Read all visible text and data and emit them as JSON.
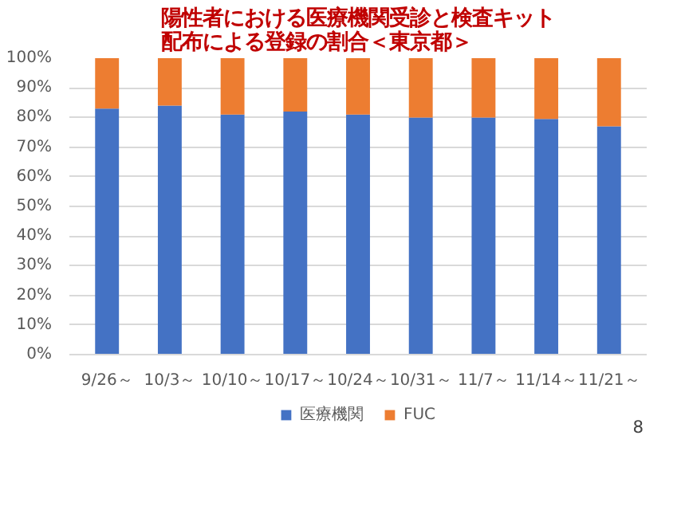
{
  "chart_data": {
    "type": "bar",
    "stacked": true,
    "title": "陽性者における医療機関受診と検査キット配布による登録の割合＜東京都＞",
    "categories": [
      "9/26～",
      "10/3～",
      "10/10～",
      "10/17～",
      "10/24～",
      "10/31～",
      "11/7～",
      "11/14～",
      "11/21～"
    ],
    "series": [
      {
        "name": "医療機関",
        "color": "#4472c4",
        "values": [
          83,
          84,
          81,
          82,
          81,
          80,
          80,
          79.5,
          77
        ]
      },
      {
        "name": "FUC",
        "color": "#ed7d31",
        "values": [
          17,
          16,
          19,
          18,
          19,
          20,
          20,
          20.5,
          23
        ]
      }
    ],
    "ylim": [
      0,
      100
    ],
    "yticks": [
      {
        "value": 0,
        "label": "0%"
      },
      {
        "value": 10,
        "label": "10%"
      },
      {
        "value": 20,
        "label": "20%"
      },
      {
        "value": 30,
        "label": "30%"
      },
      {
        "value": 40,
        "label": "40%"
      },
      {
        "value": 50,
        "label": "50%"
      },
      {
        "value": 60,
        "label": "60%"
      },
      {
        "value": 70,
        "label": "70%"
      },
      {
        "value": 80,
        "label": "80%"
      },
      {
        "value": 90,
        "label": "90%"
      },
      {
        "value": 100,
        "label": "100%"
      }
    ],
    "grid": "y",
    "legend": "bottom",
    "annotations": [
      "8"
    ]
  }
}
